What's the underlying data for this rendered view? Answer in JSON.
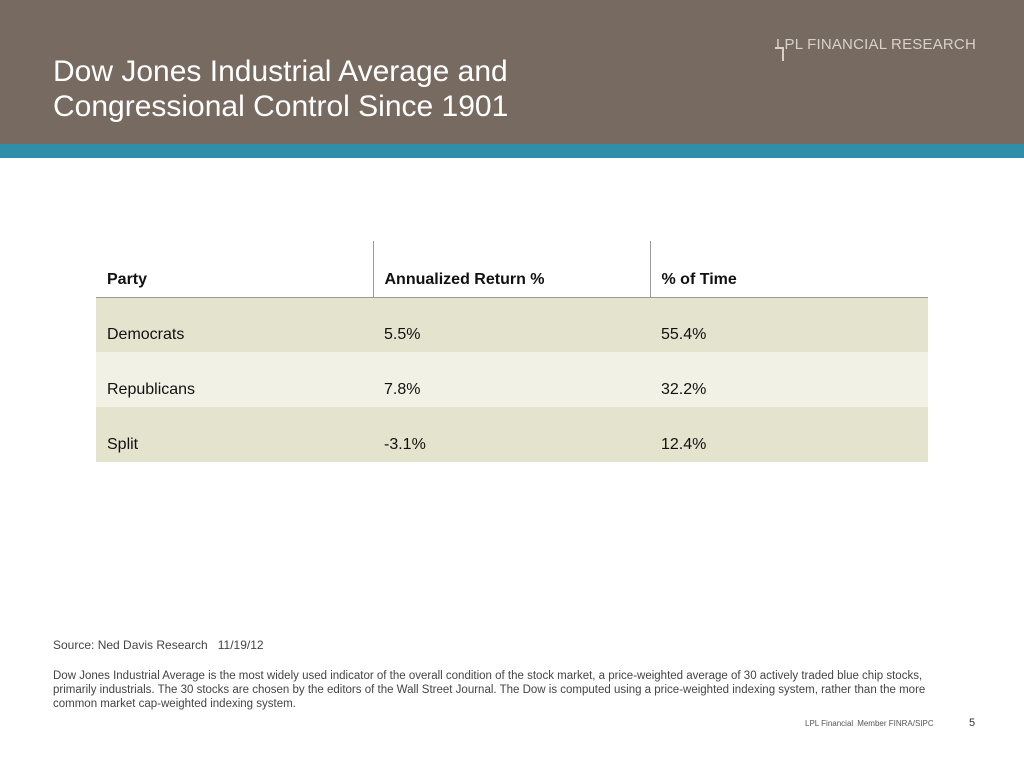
{
  "header": {
    "title_line1": "Dow Jones Industrial Average and",
    "title_line2": "Congressional Control Since 1901",
    "brand": "LPL FINANCIAL RESEARCH",
    "colors": {
      "band": "#776a60",
      "stripe": "#2f8ea8"
    }
  },
  "table": {
    "columns": [
      "Party",
      "Annualized Return %",
      "% of Time"
    ],
    "rows": [
      [
        "Democrats",
        "5.5%",
        "55.4%"
      ],
      [
        "Republicans",
        "7.8%",
        "32.2%"
      ],
      [
        "Split",
        "-3.1%",
        "12.4%"
      ]
    ]
  },
  "source": {
    "label": "Source: Ned Davis Research",
    "date": "11/19/12"
  },
  "note": "Dow Jones Industrial Average is the most widely used indicator of the overall condition of the stock market, a price-weighted average of 30 actively traded blue chip stocks, primarily industrials. The 30 stocks are chosen by the editors of the Wall Street Journal. The Dow is computed using a price-weighted indexing system, rather than the more common market cap-weighted indexing system.",
  "footer": {
    "company": "LPL Financial",
    "member": "Member FINRA/SIPC",
    "page_number": "5"
  }
}
